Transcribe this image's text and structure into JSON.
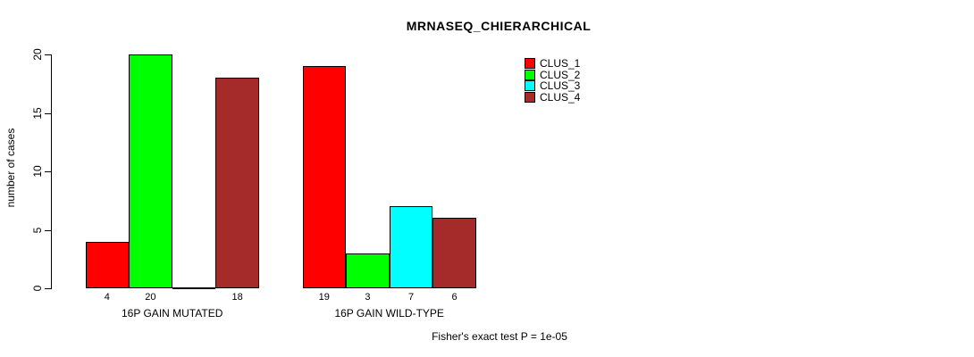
{
  "chart_data": {
    "type": "bar",
    "title": "MRNASEQ_CHIERARCHICAL",
    "ylabel": "number of cases",
    "xlabel": "",
    "ylim": [
      0,
      20
    ],
    "yticks": [
      0,
      5,
      10,
      15,
      20
    ],
    "grid": false,
    "legend_position": "top-right",
    "categories": [
      "16P GAIN MUTATED",
      "16P GAIN WILD-TYPE"
    ],
    "series": [
      {
        "name": "CLUS_1",
        "color": "#FF0000",
        "values": [
          4,
          19
        ]
      },
      {
        "name": "CLUS_2",
        "color": "#00FF00",
        "values": [
          20,
          3
        ]
      },
      {
        "name": "CLUS_3",
        "color": "#00FFFF",
        "values": [
          0,
          7
        ]
      },
      {
        "name": "CLUS_4",
        "color": "#A52A2A",
        "values": [
          18,
          6
        ]
      }
    ],
    "bar_value_labels": [
      [
        "4",
        "20",
        "",
        "18"
      ],
      [
        "19",
        "3",
        "7",
        "6"
      ]
    ],
    "annotation": "Fisher's exact test P = 1e-05"
  }
}
